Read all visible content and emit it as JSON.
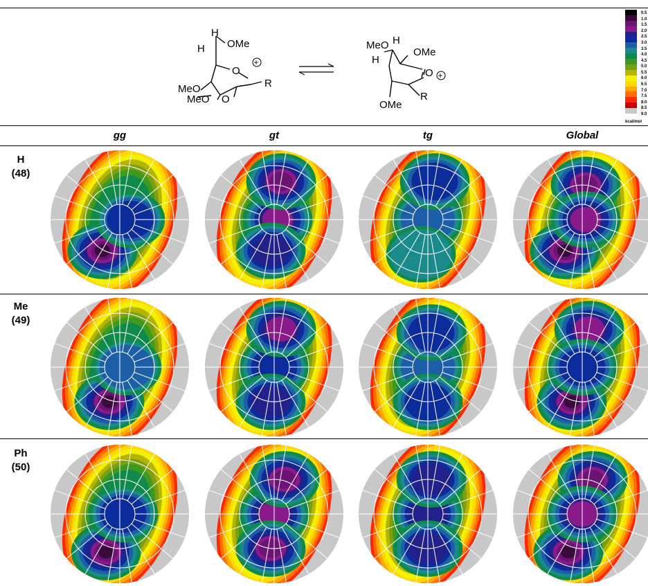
{
  "scheme": {
    "left": {
      "h": "H",
      "h_on_c6": "H",
      "ome_top": "OMe",
      "ring_o": "O",
      "charge": "+",
      "r": "R",
      "meo_c4": "MeO",
      "meo_c3": "MeO",
      "o_c2": "O"
    },
    "right": {
      "meo_top": "MeO",
      "h_top": "H",
      "h_left": "H",
      "ome_c6": "OMe",
      "o_carbonyl": "O",
      "charge": "+",
      "r": "R",
      "ome_bottom": "OMe"
    }
  },
  "legend": {
    "ticks": [
      "0.5",
      "1.0",
      "1.5",
      "2.0",
      "2.5",
      "3.0",
      "3.5",
      "4.0",
      "4.5",
      "5.0",
      "5.5",
      "6.0",
      "6.5",
      "7.0",
      "7.5",
      "8.0",
      "8.5",
      "9.0"
    ],
    "colors": [
      "#000000",
      "#3a0a3a",
      "#6b1474",
      "#8a1a8a",
      "#22208a",
      "#0c2c9c",
      "#1d5ea8",
      "#1a8a8a",
      "#0f8a4a",
      "#3c9a1e",
      "#7aa012",
      "#b6b400",
      "#f2f200",
      "#ffd800",
      "#ffa800",
      "#ff6e00",
      "#ff2800",
      "#cc0000",
      "#c8c8c8"
    ],
    "unit": "kcal/mol"
  },
  "columns": [
    "gg",
    "gt",
    "tg",
    "Global"
  ],
  "rows": [
    {
      "name": "H",
      "number": "(48)"
    },
    {
      "name": "Me",
      "number": "(49)"
    },
    {
      "name": "Ph",
      "number": "(50)"
    }
  ]
}
